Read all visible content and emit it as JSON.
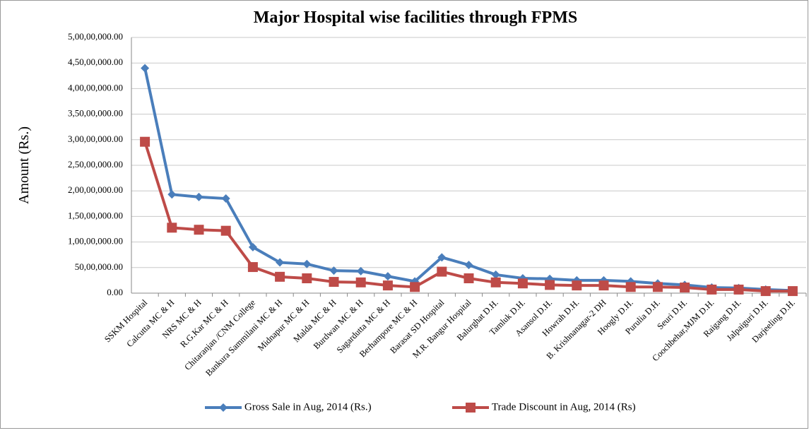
{
  "chart_data": {
    "type": "line",
    "title": "Major Hospital wise facilities through FPMS",
    "y_label": "Amount (Rs.)",
    "categories": [
      "SSKM Hospital",
      "Calcutta MC & H",
      "NRS MC & H",
      "R.G.Kar MC & H",
      "Chitaranjan /CNM College",
      "Bankura Sammilani MC & H",
      "Midnapur MC & H",
      "Malda MC & H",
      "Burdwan MC & H",
      "Sagardutta MC & H",
      "Berhampore MC & H",
      "Barasat SD Hospital",
      "M.R. Bangur Hospital",
      "Balurghat D.H.",
      "Tamluk D.H.",
      "Asansol D.H.",
      "Howrah D.H.",
      "B. Krishnanagar-2 DH",
      "Hoogly D.H.",
      "Purulia D.H.",
      "Seuri D.H.",
      "Coochbehar,MJM D.H.",
      "Raigang D.H.",
      "Jalpaiguri D.H.",
      "Darjeeling D.H."
    ],
    "series": [
      {
        "name": "Gross Sale in Aug, 2014 (Rs.)",
        "color": "#4a7ebb",
        "marker": "diamond",
        "values": [
          44000000,
          19300000,
          18800000,
          18500000,
          9000000,
          6000000,
          5700000,
          4400000,
          4300000,
          3300000,
          2300000,
          7000000,
          5500000,
          3600000,
          2900000,
          2800000,
          2500000,
          2500000,
          2300000,
          1900000,
          1600000,
          1100000,
          1000000,
          700000,
          500000
        ]
      },
      {
        "name": "Trade Discount in Aug, 2014 (Rs)",
        "color": "#be4b48",
        "marker": "square",
        "values": [
          29600000,
          12800000,
          12400000,
          12200000,
          5100000,
          3200000,
          2900000,
          2200000,
          2100000,
          1500000,
          1200000,
          4200000,
          2900000,
          2100000,
          1900000,
          1600000,
          1500000,
          1500000,
          1200000,
          1200000,
          1100000,
          700000,
          700000,
          400000,
          400000
        ]
      }
    ],
    "ylim": [
      0,
      50000000
    ],
    "yticks": [
      {
        "value": 0,
        "label": "0.00"
      },
      {
        "value": 5000000,
        "label": "50,00,000.00"
      },
      {
        "value": 10000000,
        "label": "1,00,00,000.00"
      },
      {
        "value": 15000000,
        "label": "1,50,00,000.00"
      },
      {
        "value": 20000000,
        "label": "2,00,00,000.00"
      },
      {
        "value": 25000000,
        "label": "2,50,00,000.00"
      },
      {
        "value": 30000000,
        "label": "3,00,00,000.00"
      },
      {
        "value": 35000000,
        "label": "3,50,00,000.00"
      },
      {
        "value": 40000000,
        "label": "4,00,00,000.00"
      },
      {
        "value": 45000000,
        "label": "4,50,00,000.00"
      },
      {
        "value": 50000000,
        "label": "5,00,00,000.00"
      }
    ],
    "grid": true,
    "legend": "bottom"
  }
}
